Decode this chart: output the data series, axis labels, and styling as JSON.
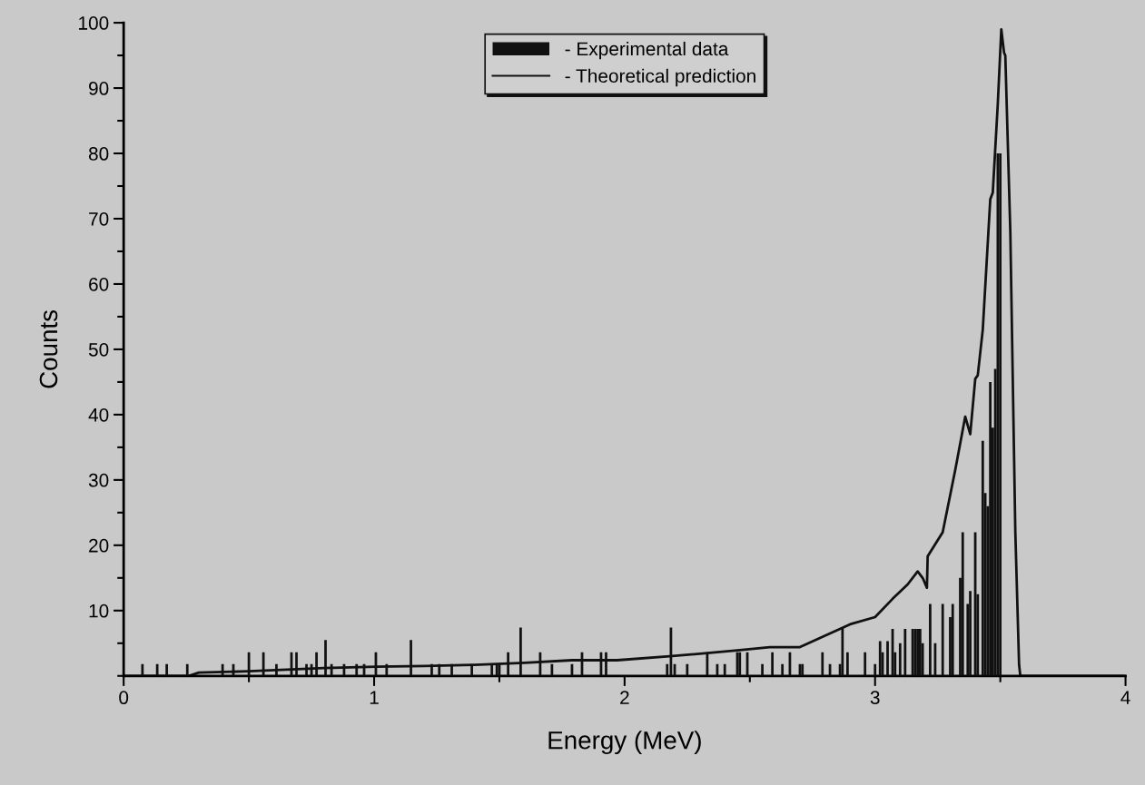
{
  "chart_data": {
    "type": "bar",
    "xlabel": "Energy (MeV)",
    "ylabel": "Counts",
    "xlim": [
      0,
      4
    ],
    "ylim": [
      0,
      100
    ],
    "xticks": [
      0,
      1,
      2,
      3,
      4
    ],
    "yticks": [
      10,
      20,
      30,
      40,
      50,
      60,
      70,
      80,
      90,
      100
    ],
    "legend": "top",
    "grid": false,
    "series": [
      {
        "name": "- Experimental data",
        "color": "#111111",
        "x": [
          0.075,
          0.134,
          0.172,
          0.254,
          0.395,
          0.438,
          0.5,
          0.558,
          0.61,
          0.67,
          0.69,
          0.73,
          0.75,
          0.77,
          0.806,
          0.83,
          0.88,
          0.93,
          0.96,
          1.007,
          1.05,
          1.147,
          1.23,
          1.26,
          1.31,
          1.39,
          1.47,
          1.49,
          1.5,
          1.535,
          1.585,
          1.663,
          1.71,
          1.79,
          1.83,
          1.906,
          1.926,
          2.17,
          2.185,
          2.2,
          2.25,
          2.33,
          2.37,
          2.4,
          2.45,
          2.46,
          2.49,
          2.55,
          2.59,
          2.63,
          2.66,
          2.7,
          2.71,
          2.79,
          2.82,
          2.86,
          2.87,
          2.89,
          2.96,
          3.0,
          3.02,
          3.03,
          3.05,
          3.07,
          3.08,
          3.1,
          3.12,
          3.15,
          3.16,
          3.17,
          3.18,
          3.19,
          3.22,
          3.24,
          3.27,
          3.3,
          3.31,
          3.34,
          3.35,
          3.37,
          3.38,
          3.4,
          3.41,
          3.43,
          3.44,
          3.45,
          3.46,
          3.47,
          3.48,
          3.49,
          3.5
        ],
        "values": [
          1.8,
          1.8,
          1.8,
          1.8,
          1.8,
          1.8,
          3.6,
          3.6,
          1.8,
          3.6,
          3.6,
          1.8,
          1.8,
          3.6,
          5.5,
          1.8,
          1.8,
          1.8,
          1.8,
          3.6,
          1.8,
          5.5,
          1.8,
          1.8,
          1.8,
          1.8,
          1.8,
          1.8,
          1.8,
          3.6,
          7.4,
          3.6,
          1.8,
          1.8,
          3.6,
          3.6,
          3.6,
          1.8,
          7.4,
          1.8,
          1.8,
          3.6,
          1.8,
          1.8,
          3.6,
          3.6,
          3.6,
          1.8,
          3.6,
          1.8,
          3.6,
          1.8,
          1.8,
          3.6,
          1.8,
          1.8,
          7.4,
          3.6,
          3.6,
          1.8,
          5.3,
          3.6,
          5.3,
          7.2,
          3.6,
          5,
          7.2,
          7.2,
          7.2,
          7.2,
          7.2,
          5,
          11,
          5,
          11,
          9,
          11,
          15,
          22,
          11,
          13,
          22,
          12.5,
          36,
          28,
          26,
          45,
          38,
          47,
          80,
          80
        ]
      },
      {
        "name": "- Theoretical prediction",
        "type": "line",
        "color": "#111111",
        "x": [
          0,
          0.26,
          0.3,
          0.5,
          0.8,
          1.01,
          1.2,
          1.4,
          1.6,
          1.79,
          1.97,
          2.18,
          2.33,
          2.45,
          2.58,
          2.7,
          2.82,
          2.9,
          3.0,
          3.07,
          3.13,
          3.17,
          3.19,
          3.207,
          3.21,
          3.27,
          3.32,
          3.36,
          3.38,
          3.4,
          3.41,
          3.43,
          3.46,
          3.47,
          3.49,
          3.504,
          3.515,
          3.52,
          3.54,
          3.56,
          3.575,
          3.58,
          4
        ],
        "values": [
          0,
          0,
          0.5,
          0.7,
          1.2,
          1.4,
          1.5,
          1.7,
          2,
          2.4,
          2.4,
          3,
          3.5,
          3.9,
          4.4,
          4.4,
          6.5,
          7.9,
          9,
          11.8,
          14,
          16,
          15,
          13.5,
          18.3,
          22,
          31.5,
          39.7,
          37,
          45.5,
          46,
          53,
          73,
          74,
          87.6,
          99,
          95.4,
          95,
          68,
          22,
          1.7,
          0,
          0
        ]
      }
    ]
  }
}
